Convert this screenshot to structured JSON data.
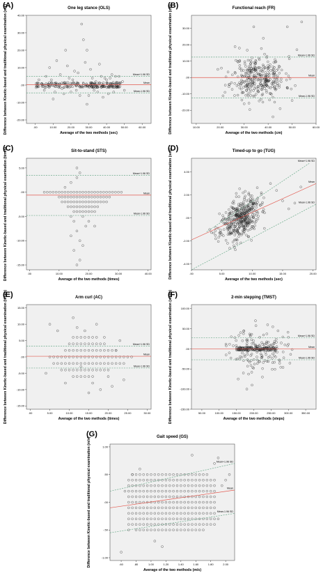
{
  "chart_data": [
    {
      "panel": "(A)",
      "title": "One leg stance (OLS)",
      "type": "scatter",
      "xlabel": "Average of the two methods (sec)",
      "ylabel": "Difference between Kinetic-based and traditional physical examination (sec)",
      "xlim": [
        -5,
        65
      ],
      "ylim": [
        -22,
        40
      ],
      "xticks": [
        0,
        10,
        20,
        30,
        40,
        50,
        60
      ],
      "xtick_labels": [
        ".00",
        "10.00",
        "20.00",
        "30.00",
        "40.00",
        "50.00",
        "60.00"
      ],
      "yticks": [
        -20,
        -10,
        0,
        10,
        20,
        30,
        40
      ],
      "ytick_labels": [
        "-20.00",
        "-10.00",
        ".00",
        "10.00",
        "20.00",
        "30.00",
        "40.00"
      ],
      "reference_lines": [
        {
          "label": "Mean+1.96 SD",
          "y": 5,
          "color": "#6aaa8a",
          "style": "dashed"
        },
        {
          "label": "Mean",
          "y": 0.2,
          "color": "#e2584e",
          "style": "solid"
        },
        {
          "label": "Mean-1.96 SD",
          "y": -4.5,
          "color": "#6aaa8a",
          "style": "dashed"
        }
      ],
      "band": {
        "x": [
          0,
          48
        ],
        "y": [
          -1.5,
          1.5
        ],
        "count": 220
      },
      "points": [
        [
          2,
          3
        ],
        [
          5,
          -3
        ],
        [
          8,
          10
        ],
        [
          10,
          -8
        ],
        [
          12,
          14
        ],
        [
          14,
          6
        ],
        [
          16,
          -5
        ],
        [
          17,
          20
        ],
        [
          18,
          11
        ],
        [
          20,
          -4
        ],
        [
          22,
          8
        ],
        [
          24,
          7
        ],
        [
          25,
          -6
        ],
        [
          26,
          35
        ],
        [
          27,
          26
        ],
        [
          28,
          13
        ],
        [
          29,
          -11
        ],
        [
          30,
          -6
        ],
        [
          31,
          9
        ],
        [
          32,
          4
        ],
        [
          34,
          2
        ],
        [
          35,
          -4
        ],
        [
          36,
          12
        ],
        [
          38,
          -7
        ],
        [
          39,
          4
        ],
        [
          40,
          3
        ],
        [
          41,
          -5
        ],
        [
          43,
          6
        ],
        [
          45,
          5
        ],
        [
          47,
          5
        ],
        [
          49,
          2
        ],
        [
          50,
          -3
        ],
        [
          9,
          3
        ],
        [
          19,
          4
        ],
        [
          23,
          -3
        ],
        [
          33,
          -3
        ],
        [
          42,
          4
        ],
        [
          15,
          -2
        ],
        [
          21,
          3
        ],
        [
          37,
          5
        ],
        [
          11,
          -4
        ],
        [
          6,
          5
        ],
        [
          44,
          -4
        ],
        [
          29,
          20
        ]
      ]
    },
    {
      "panel": "(B)",
      "title": "Functional reach (FR)",
      "type": "scatter",
      "xlabel": "Average of the two methods (cm)",
      "ylabel": "Difference between Kinetic-based and traditional physical examination (cm)",
      "xlim": [
        8,
        60
      ],
      "ylim": [
        -28,
        38
      ],
      "xticks": [
        10,
        20,
        30,
        40,
        50,
        60
      ],
      "xtick_labels": [
        "10.00",
        "20.00",
        "30.00",
        "40.00",
        "50.00",
        "60.00"
      ],
      "yticks": [
        -20,
        -10,
        0,
        10,
        20,
        30
      ],
      "ytick_labels": [
        "-20.00",
        "-10.00",
        ".00",
        "10.00",
        "20.00",
        "30.00"
      ],
      "reference_lines": [
        {
          "label": "Mean+1.96 SD",
          "y": 12.5,
          "color": "#6aaa8a",
          "style": "dashed"
        },
        {
          "label": "Mean",
          "y": 0,
          "color": "#e2584e",
          "style": "solid"
        },
        {
          "label": "Mean-1.96 SD",
          "y": -12.5,
          "color": "#6aaa8a",
          "style": "dashed"
        }
      ],
      "cloud": {
        "cx": 36,
        "cy": 0,
        "sx": 5.5,
        "sy": 6.5,
        "count": 330,
        "seed": 11
      },
      "points": [
        [
          48,
          31
        ],
        [
          54,
          34
        ],
        [
          34,
          31
        ],
        [
          26,
          -11
        ],
        [
          45,
          -19
        ],
        [
          52,
          17
        ],
        [
          22,
          -9
        ],
        [
          19,
          5
        ],
        [
          38,
          24
        ],
        [
          50,
          -14
        ],
        [
          28,
          18
        ],
        [
          42,
          -24
        ]
      ]
    },
    {
      "panel": "(C)",
      "title": "Sit-to-stand (STS)",
      "type": "scatter",
      "xlabel": "Average of the two methods (times)",
      "ylabel": "Difference between Kinetic-based and traditional physical examination (times)",
      "xlim": [
        -1,
        41
      ],
      "ylim": [
        -16,
        7
      ],
      "xticks": [
        0,
        10,
        20,
        30,
        40
      ],
      "xtick_labels": [
        ".00",
        "10.00",
        "20.00",
        "30.00",
        "40.00"
      ],
      "yticks": [
        -15,
        -10,
        -5,
        0,
        5
      ],
      "ytick_labels": [
        "-15.00",
        "-10.00",
        "-5.00",
        ".00",
        "5.00"
      ],
      "reference_lines": [
        {
          "label": "Mean+1.96 SD",
          "y": 3.5,
          "color": "#6aaa8a",
          "style": "dashed"
        },
        {
          "label": "Mean",
          "y": -0.6,
          "color": "#e2584e",
          "style": "solid"
        },
        {
          "label": "Mean-1.96 SD",
          "y": -4.8,
          "color": "#6aaa8a",
          "style": "dashed"
        }
      ],
      "grid_rows": [
        {
          "y": 0,
          "x": [
            5,
            31
          ]
        },
        {
          "y": -1,
          "x": [
            10,
            27
          ]
        },
        {
          "y": -2,
          "x": [
            11,
            26
          ]
        },
        {
          "y": -3,
          "x": [
            13,
            23
          ]
        },
        {
          "y": -4,
          "x": [
            15,
            22
          ]
        }
      ],
      "points": [
        [
          16,
          5
        ],
        [
          17,
          4
        ],
        [
          16,
          3
        ],
        [
          12,
          1
        ],
        [
          14,
          2
        ],
        [
          18,
          -5
        ],
        [
          15,
          -6
        ],
        [
          19,
          -7
        ],
        [
          16,
          -8
        ],
        [
          14,
          -9
        ],
        [
          17,
          -10
        ],
        [
          18,
          -11
        ],
        [
          15,
          -12
        ],
        [
          17,
          -14
        ],
        [
          20,
          -6
        ],
        [
          16,
          -15
        ],
        [
          22,
          -7
        ],
        [
          14,
          -5
        ]
      ]
    },
    {
      "panel": "(D)",
      "title": "Timed-up to go (TUG)",
      "type": "scatter",
      "xlabel": "Average of the two methods (sec)",
      "ylabel": "Difference between Kinetic-based and traditional physical examination (sec)",
      "xlim": [
        0,
        20.5
      ],
      "ylim": [
        -4.5,
        5.2
      ],
      "xticks": [
        0,
        5,
        10,
        15,
        20
      ],
      "xtick_labels": [
        ".00",
        "5.00",
        "10.00",
        "15.00",
        "20.00"
      ],
      "yticks": [
        -4,
        -2,
        0,
        2,
        4
      ],
      "ytick_labels": [
        "-4.00",
        "-2.00",
        ".00",
        "2.00",
        "4.00"
      ],
      "reference_lines": [
        {
          "label": "Mean+1.96 SD",
          "from": [
            2.5,
            -1.2
          ],
          "to": [
            19.5,
            4.8
          ],
          "color": "#6aaa8a",
          "style": "dashed"
        },
        {
          "label": "Mean",
          "from": [
            0,
            -1.9
          ],
          "to": [
            20.5,
            3.0
          ],
          "color": "#e2584e",
          "style": "solid"
        },
        {
          "label": "Mean-1.96 SD",
          "from": [
            0,
            -4.5
          ],
          "to": [
            20.5,
            1.2
          ],
          "color": "#6aaa8a",
          "style": "dashed"
        }
      ],
      "cloud": {
        "cx": 8,
        "cy": -0.05,
        "sx": 1.6,
        "sy": 0.85,
        "count": 420,
        "seed": 23,
        "slope": 0.24
      },
      "points": [
        [
          14,
          2.4
        ],
        [
          15,
          1.5
        ],
        [
          17,
          1.3
        ],
        [
          13,
          3
        ],
        [
          12,
          -0.9
        ],
        [
          11.5,
          2.2
        ],
        [
          16,
          0.8
        ],
        [
          3,
          -1
        ],
        [
          4,
          -1.8
        ],
        [
          18,
          2.7
        ]
      ]
    },
    {
      "panel": "(E)",
      "title": "Arm curl (AC)",
      "type": "scatter",
      "xlabel": "Average of the two methods (times)",
      "ylabel": "Difference between Kinetic-based and traditional physical examination (times)",
      "xlim": [
        -1,
        31
      ],
      "ylim": [
        -16,
        16
      ],
      "xticks": [
        0,
        5,
        10,
        15,
        20,
        25,
        30
      ],
      "xtick_labels": [
        ".00",
        "5.00",
        "10.00",
        "15.00",
        "20.00",
        "25.00",
        "30.00"
      ],
      "yticks": [
        -15,
        -10,
        -5,
        0,
        5,
        10,
        15
      ],
      "ytick_labels": [
        "-15.00",
        "-10.00",
        "-5.00",
        ".00",
        "5.00",
        "10.00",
        "15.00"
      ],
      "reference_lines": [
        {
          "label": "Mean+1.96 SD",
          "y": 3.3,
          "color": "#6aaa8a",
          "style": "dashed"
        },
        {
          "label": "Mean",
          "y": 0.2,
          "color": "#e2584e",
          "style": "solid"
        },
        {
          "label": "Mean-1.96 SD",
          "y": -3.4,
          "color": "#6aaa8a",
          "style": "dashed"
        }
      ],
      "grid_rows": [
        {
          "y": 0,
          "x": [
            5,
            26
          ]
        },
        {
          "y": -2,
          "x": [
            7,
            24
          ]
        },
        {
          "y": 2,
          "x": [
            9,
            22
          ]
        },
        {
          "y": -4,
          "x": [
            9,
            20
          ]
        },
        {
          "y": 4,
          "x": [
            10,
            19
          ]
        },
        {
          "y": -6,
          "x": [
            11,
            16
          ]
        },
        {
          "y": 6,
          "x": [
            11,
            17
          ]
        }
      ],
      "points": [
        [
          5,
          10
        ],
        [
          7,
          8
        ],
        [
          8,
          -4
        ],
        [
          11,
          12
        ],
        [
          13,
          -3
        ],
        [
          14,
          8
        ],
        [
          16,
          -8
        ],
        [
          17,
          10
        ],
        [
          18,
          -10
        ],
        [
          19,
          6
        ],
        [
          20,
          -6
        ],
        [
          23,
          5
        ],
        [
          24,
          -7
        ],
        [
          22,
          2
        ],
        [
          4,
          -5
        ],
        [
          9,
          -8
        ],
        [
          12,
          9
        ],
        [
          15,
          -11
        ],
        [
          21,
          -9
        ],
        [
          6,
          -2
        ]
      ]
    },
    {
      "panel": "(F)",
      "title": "2-min stepping (TMST)",
      "type": "scatter",
      "xlabel": "Average of the two methods (steps)",
      "ylabel": "Difference between Kinetic-based and traditional physical examination (steps)",
      "xlim": [
        20,
        380
      ],
      "ylim": [
        -150,
        110
      ],
      "xticks": [
        50,
        100,
        150,
        200,
        250,
        300,
        350
      ],
      "xtick_labels": [
        "50.00",
        "100.00",
        "150.00",
        "200.00",
        "250.00",
        "300.00",
        "350.00"
      ],
      "yticks": [
        -150,
        -100,
        -50,
        0,
        50,
        100
      ],
      "ytick_labels": [
        "-150.00",
        "-100.00",
        "-50.00",
        ".00",
        "50.00",
        "100.00"
      ],
      "reference_lines": [
        {
          "label": "Mean+1.96 SD",
          "y": 28,
          "color": "#6aaa8a",
          "style": "dashed"
        },
        {
          "label": "Mean",
          "y": 0,
          "color": "#e2584e",
          "style": "solid"
        },
        {
          "label": "Mean-1.96 SD",
          "y": -27,
          "color": "#6aaa8a",
          "style": "dashed"
        }
      ],
      "band": {
        "x": [
          150,
          265
        ],
        "y": [
          -4,
          4
        ],
        "count": 140
      },
      "cloud": {
        "cx": 215,
        "cy": -3,
        "sx": 40,
        "sy": 25,
        "count": 150,
        "seed": 37
      },
      "points": [
        [
          180,
          -100
        ],
        [
          240,
          60
        ],
        [
          255,
          55
        ],
        [
          155,
          -75
        ],
        [
          195,
          -90
        ],
        [
          135,
          30
        ],
        [
          270,
          45
        ],
        [
          205,
          70
        ],
        [
          225,
          -70
        ],
        [
          170,
          -60
        ],
        [
          290,
          10
        ],
        [
          120,
          -15
        ]
      ]
    },
    {
      "panel": "(G)",
      "title": "Gait speed (GS)",
      "type": "scatter",
      "xlabel": "Average of the two methods (m/s)",
      "ylabel": "Difference between Kinetic-based and traditional physical examination (m/s)",
      "xlim": [
        0.45,
        2.12
      ],
      "ylim": [
        -1.05,
        1.05
      ],
      "xticks": [
        0.6,
        0.8,
        1.0,
        1.2,
        1.4,
        1.6,
        1.8,
        2.0
      ],
      "xtick_labels": [
        ".60",
        ".80",
        "1.00",
        "1.20",
        "1.40",
        "1.60",
        "1.80",
        "2.00"
      ],
      "yticks": [
        -1.0,
        -0.5,
        0,
        0.5,
        1.0
      ],
      "ytick_labels": [
        "-1.00",
        "-.50",
        ".00",
        ".50",
        "1.00"
      ],
      "reference_lines": [
        {
          "label": "Mean+1.96 SD",
          "from": [
            0.45,
            0.2
          ],
          "to": [
            2.12,
            0.7
          ],
          "color": "#6aaa8a",
          "style": "dashed"
        },
        {
          "label": "Mean",
          "from": [
            0.45,
            -0.1
          ],
          "to": [
            2.12,
            0.22
          ],
          "color": "#e2584e",
          "style": "solid"
        },
        {
          "label": "Mean-1.96 SD",
          "from": [
            0.45,
            -0.55
          ],
          "to": [
            2.12,
            -0.2
          ],
          "color": "#6aaa8a",
          "style": "dashed"
        }
      ],
      "lattice": {
        "x": [
          0.7,
          1.85
        ],
        "dx": 0.05,
        "y": [
          -0.5,
          0.5
        ],
        "dy": 0.1,
        "rx": 0.85,
        "ry": 0.62,
        "cx": 1.25,
        "cy": 0.02
      },
      "points": [
        [
          0.6,
          -0.9
        ],
        [
          0.7,
          -0.5
        ],
        [
          0.75,
          0.5
        ],
        [
          0.85,
          0.6
        ],
        [
          0.65,
          0.2
        ],
        [
          1.9,
          0.8
        ],
        [
          1.95,
          0.3
        ],
        [
          2.0,
          0.4
        ],
        [
          1.85,
          0.7
        ],
        [
          1.9,
          -0.3
        ],
        [
          2.05,
          0.5
        ],
        [
          1.55,
          0.85
        ],
        [
          1.15,
          -0.8
        ],
        [
          1.05,
          -0.7
        ]
      ]
    }
  ]
}
